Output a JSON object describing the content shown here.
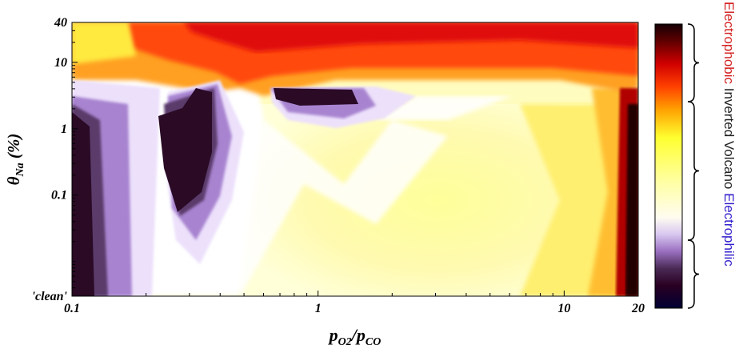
{
  "chart_data": {
    "type": "heatmap",
    "xlabel": {
      "main": "p",
      "sub1": "O2",
      "sep": "/p",
      "sub2": "CO"
    },
    "ylabel": {
      "main": "θ",
      "sub": "Na",
      "suffix": " (%)"
    },
    "x_scale": "log",
    "xlim": [
      0.1,
      20
    ],
    "x_ticks": [
      {
        "value": 0.1,
        "label": "0.1"
      },
      {
        "value": 1,
        "label": "1"
      },
      {
        "value": 10,
        "label": "10"
      },
      {
        "value": 20,
        "label": "20"
      }
    ],
    "y_scale": "log",
    "ylim": [
      0.003,
      40
    ],
    "y_ticks": [
      {
        "value": 0.003,
        "label": "'clean'"
      },
      {
        "value": 0.1,
        "label": "0.1"
      },
      {
        "value": 1,
        "label": "1"
      },
      {
        "value": 10,
        "label": "10"
      },
      {
        "value": 40,
        "label": "40"
      }
    ],
    "regions": [
      {
        "name": "electrophobic",
        "label": "Electrophobic",
        "color": "#d42020"
      },
      {
        "name": "inverted-volcano",
        "label": "Inverted Volcano",
        "color": "#222222"
      },
      {
        "name": "electrophilic",
        "label": "Electrophilic",
        "color": "#3322cc"
      }
    ],
    "colorbar": {
      "stops": [
        "#000033",
        "#2a0022",
        "#4a2a55",
        "#9a70c0",
        "#d8c8f0",
        "#fffcf0",
        "#ffffa0",
        "#ffff30",
        "#ffa000",
        "#ff4000",
        "#d00000",
        "#600000",
        "#150005"
      ]
    }
  }
}
